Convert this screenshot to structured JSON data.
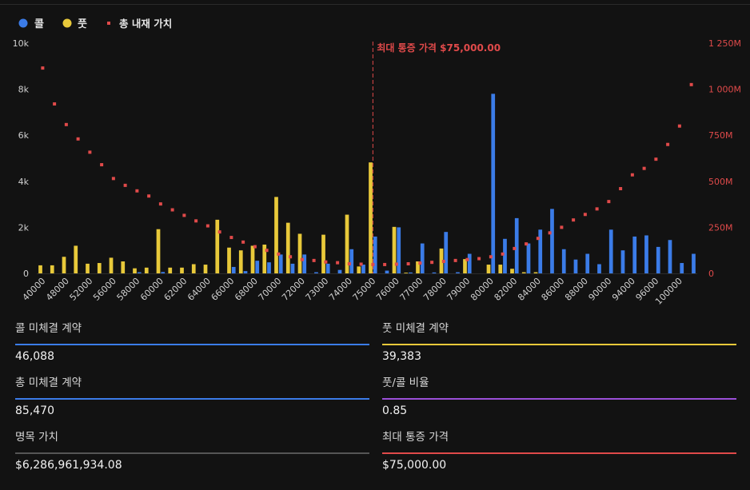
{
  "colors": {
    "background": "#121212",
    "call": "#3b7ce8",
    "put": "#e8c93a",
    "intrinsic": "#e04a4a",
    "max_pain_line": "#e04a4a",
    "ratio_rule": "#9b4fd8",
    "notional_rule": "#555555"
  },
  "legend": {
    "call_label": "콜",
    "put_label": "풋",
    "intrinsic_label": "총 내재 가치",
    "call_icon": "circle-dot-icon",
    "put_icon": "circle-dot-icon",
    "intrinsic_icon": "square-dot-icon"
  },
  "annotation": {
    "max_pain_text": "최대 통증 가격 $75,000.00",
    "max_pain_strike": "75000"
  },
  "chart_data": {
    "type": "bar",
    "legend_position": "top-left",
    "grid": false,
    "categories": [
      "40000",
      "44000",
      "48000",
      "50000",
      "52000",
      "54000",
      "56000",
      "57000",
      "58000",
      "59000",
      "60000",
      "61000",
      "62000",
      "63000",
      "64000",
      "65000",
      "66000",
      "67000",
      "68000",
      "69000",
      "70000",
      "71000",
      "72000",
      "72500",
      "73000",
      "73500",
      "74000",
      "74500",
      "75000",
      "75500",
      "76000",
      "76500",
      "77000",
      "77500",
      "78000",
      "78500",
      "79000",
      "79500",
      "80000",
      "81000",
      "82000",
      "83000",
      "84000",
      "85000",
      "86000",
      "87000",
      "88000",
      "89000",
      "90000",
      "92000",
      "94000",
      "95000",
      "96000",
      "98000",
      "100000",
      "105000"
    ],
    "x_tick_labels": [
      "40000",
      "48000",
      "52000",
      "56000",
      "58000",
      "60000",
      "62000",
      "64000",
      "66000",
      "68000",
      "70000",
      "72000",
      "73000",
      "74000",
      "75000",
      "76000",
      "77000",
      "78000",
      "79000",
      "80000",
      "82000",
      "84000",
      "86000",
      "88000",
      "90000",
      "94000",
      "96000",
      "100000"
    ],
    "y_axis_left": {
      "min": 0,
      "max": 10000,
      "ticks": [
        "0",
        "2k",
        "4k",
        "6k",
        "8k",
        "10k"
      ]
    },
    "y_axis_right": {
      "min": 0,
      "max": 1250000000,
      "ticks": [
        "0",
        "250M",
        "500M",
        "750M",
        "1 000M",
        "1 250M"
      ]
    },
    "series": [
      {
        "name": "콜",
        "type": "bar",
        "axis": "left",
        "values": [
          0,
          0,
          0,
          0,
          0,
          0,
          0,
          0,
          50,
          0,
          60,
          0,
          0,
          0,
          0,
          0,
          280,
          100,
          550,
          480,
          820,
          420,
          820,
          50,
          420,
          150,
          1050,
          380,
          1600,
          120,
          2000,
          40,
          1300,
          40,
          1800,
          50,
          850,
          0,
          7800,
          1500,
          2400,
          1300,
          1900,
          2800,
          1050,
          600,
          850,
          400,
          1900,
          1000,
          1600,
          1650,
          1150,
          1450,
          450,
          850
        ]
      },
      {
        "name": "풋",
        "type": "bar",
        "axis": "left",
        "values": [
          350,
          350,
          720,
          1200,
          420,
          450,
          680,
          520,
          220,
          250,
          1920,
          250,
          250,
          400,
          380,
          2330,
          1120,
          1000,
          1200,
          1250,
          3320,
          2200,
          1720,
          0,
          1680,
          0,
          2550,
          300,
          4820,
          0,
          2020,
          30,
          520,
          0,
          1080,
          0,
          620,
          0,
          380,
          380,
          200,
          50,
          50,
          0,
          0,
          0,
          0,
          0,
          0,
          0,
          0,
          0,
          0,
          0,
          0,
          0
        ]
      },
      {
        "name": "총 내재 가치",
        "type": "scatter",
        "axis": "right",
        "values": [
          1115000000,
          920000000,
          808000000,
          730000000,
          658000000,
          590000000,
          515000000,
          478000000,
          448000000,
          420000000,
          377000000,
          345000000,
          315000000,
          285000000,
          258000000,
          225000000,
          195000000,
          170000000,
          145000000,
          125000000,
          105000000,
          90000000,
          75000000,
          70000000,
          62000000,
          58000000,
          52000000,
          50000000,
          48000000,
          48000000,
          50000000,
          52000000,
          56000000,
          60000000,
          65000000,
          70000000,
          75000000,
          80000000,
          90000000,
          105000000,
          135000000,
          160000000,
          190000000,
          220000000,
          250000000,
          290000000,
          320000000,
          350000000,
          390000000,
          460000000,
          535000000,
          570000000,
          620000000,
          700000000,
          800000000,
          1025000000
        ]
      }
    ]
  },
  "stats": [
    {
      "label": "콜 미체결 계약",
      "value": "46,088",
      "color": "#3b7ce8"
    },
    {
      "label": "풋 미체결 계약",
      "value": "39,383",
      "color": "#e8c93a"
    },
    {
      "label": "총 미체결 계약",
      "value": "85,470",
      "color": "#3b7ce8"
    },
    {
      "label": "풋/콜 비율",
      "value": "0.85",
      "color": "#9b4fd8"
    },
    {
      "label": "명목 가치",
      "value": "$6,286,961,934.08",
      "color": "#555555"
    },
    {
      "label": "최대 통증 가격",
      "value": "$75,000.00",
      "color": "#e04a4a"
    }
  ]
}
